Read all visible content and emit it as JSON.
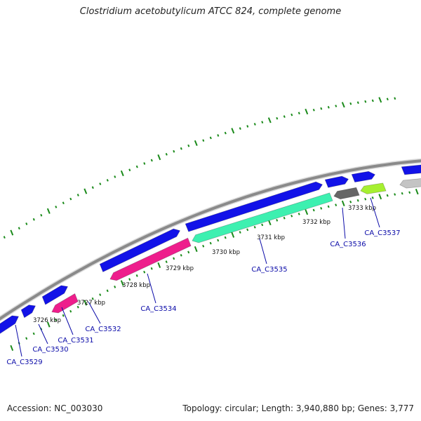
{
  "title": "Clostridium acetobutylicum ATCC 824, complete genome",
  "footer": {
    "accession": "Accession: NC_003030",
    "summary": "Topology: circular; Length: 3,940,880 bp; Genes: 3,777"
  },
  "colors": {
    "forward": "#1212e8",
    "magenta": "#ee1e8c",
    "teal": "#3df0b0",
    "dark_gray": "#666666",
    "lime": "#a6f030",
    "light_gray": "#c4c4c4",
    "backbone": "#8a8a8a",
    "dots": "#1a8a1a",
    "label": "#0a0aa8"
  },
  "kbp_labels": [
    "3726 kbp",
    "3727 kbp",
    "3728 kbp",
    "3729 kbp",
    "3730 kbp",
    "3731 kbp",
    "3732 kbp",
    "3733 kbp"
  ],
  "genes": [
    {
      "label": "CA_C3529",
      "strand": "forward",
      "color": "forward"
    },
    {
      "label": "CA_C3530",
      "strand": "forward",
      "color": "forward"
    },
    {
      "label": "CA_C3531",
      "strand": "reverse",
      "color": "magenta"
    },
    {
      "label": "CA_C3532",
      "strand": "forward",
      "color": "forward"
    },
    {
      "label": "CA_C3534",
      "strand": "reverse",
      "color": "magenta"
    },
    {
      "label": "CA_C3535",
      "strand": "reverse",
      "color": "teal"
    },
    {
      "label": "CA_C3536",
      "strand": "reverse",
      "color": "dark_gray"
    },
    {
      "label": "CA_C3537",
      "strand": "reverse",
      "color": "lime"
    }
  ],
  "unlabeled_features": [
    {
      "strand": "forward",
      "color": "forward"
    },
    {
      "strand": "forward",
      "color": "forward"
    },
    {
      "strand": "forward",
      "color": "forward"
    },
    {
      "strand": "forward",
      "color": "forward"
    },
    {
      "strand": "forward",
      "color": "forward"
    },
    {
      "strand": "reverse",
      "color": "light_gray"
    }
  ]
}
